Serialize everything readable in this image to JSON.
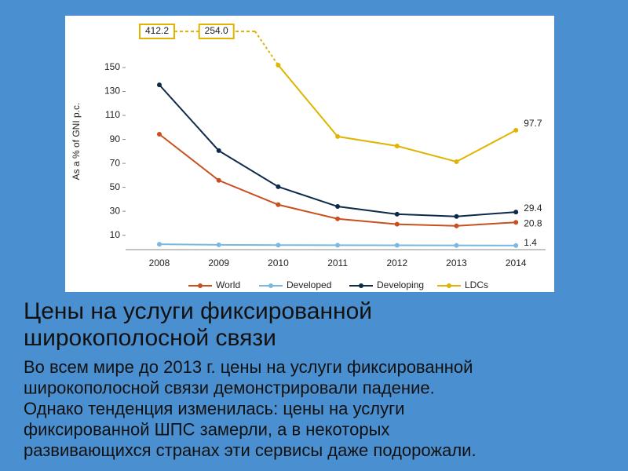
{
  "chart_data": {
    "type": "line",
    "y_label": "As a % of GNI p.c.",
    "categories": [
      "2008",
      "2009",
      "2010",
      "2011",
      "2012",
      "2013",
      "2014"
    ],
    "ylim": [
      -2,
      150
    ],
    "yticks": [
      10,
      30,
      50,
      70,
      90,
      110,
      130,
      150
    ],
    "legend": "bottom",
    "series": [
      {
        "name": "World",
        "color": "#c8501e",
        "values": [
          94.3,
          55.8,
          35.5,
          23.7,
          19.2,
          17.8,
          20.8
        ],
        "value_labels": [
          null,
          null,
          null,
          null,
          null,
          null,
          "20.8"
        ]
      },
      {
        "name": "Developed",
        "color": "#7bb8e0",
        "values": [
          2.5,
          2.0,
          1.8,
          1.7,
          1.6,
          1.5,
          1.4
        ],
        "value_labels": [
          null,
          null,
          null,
          null,
          null,
          null,
          "1.4"
        ]
      },
      {
        "name": "Developing",
        "color": "#0d2a4a",
        "values": [
          135.5,
          80.6,
          50.5,
          34.0,
          27.6,
          25.7,
          29.4
        ],
        "value_labels": [
          null,
          null,
          null,
          null,
          null,
          null,
          "29.4"
        ]
      },
      {
        "name": "LDCs",
        "color": "#e0b400",
        "values": [
          412.2,
          254.0,
          152.0,
          92.4,
          84.5,
          71.4,
          97.7
        ],
        "value_labels": [
          "412.2",
          "254.0",
          null,
          null,
          null,
          null,
          "97.7"
        ]
      }
    ]
  },
  "slide": {
    "title_lines": [
      "Цены на услуги фиксированной",
      "широкополосной связи"
    ],
    "body_lines": [
      "Во всем мире до 2013 г. цены на услуги фиксированной",
      "широкополосной связи демонстрировали падение.",
      "Однако тенденция изменилась: цены на услуги",
      "фиксированной ШПС замерли, а в некоторых",
      "развивающихся странах эти сервисы даже подорожали."
    ]
  }
}
